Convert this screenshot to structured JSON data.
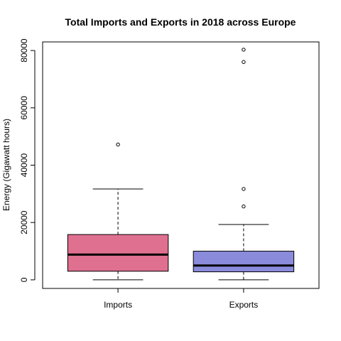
{
  "chart_data": {
    "type": "boxplot",
    "title": "Total Imports and Exports in 2018 across Europe",
    "xlabel": "",
    "ylabel": "Energy (Gigawatt hours)",
    "ylim": [
      -3000,
      83000
    ],
    "yticks": [
      0,
      20000,
      40000,
      60000,
      80000
    ],
    "ytick_labels": [
      "0",
      "20000",
      "40000",
      "60000",
      "80000"
    ],
    "grid": false,
    "categories": [
      "Imports",
      "Exports"
    ],
    "boxes": [
      {
        "name": "Imports",
        "color": "#e07090",
        "whisker_low": 0,
        "q1": 3000,
        "median": 8800,
        "q3": 15800,
        "whisker_high": 31700,
        "outliers": [
          47200
        ]
      },
      {
        "name": "Exports",
        "color": "#8b8bdb",
        "whisker_low": 0,
        "q1": 2800,
        "median": 5000,
        "q3": 10000,
        "whisker_high": 19300,
        "outliers": [
          25600,
          31700,
          76000,
          80300
        ]
      }
    ]
  }
}
